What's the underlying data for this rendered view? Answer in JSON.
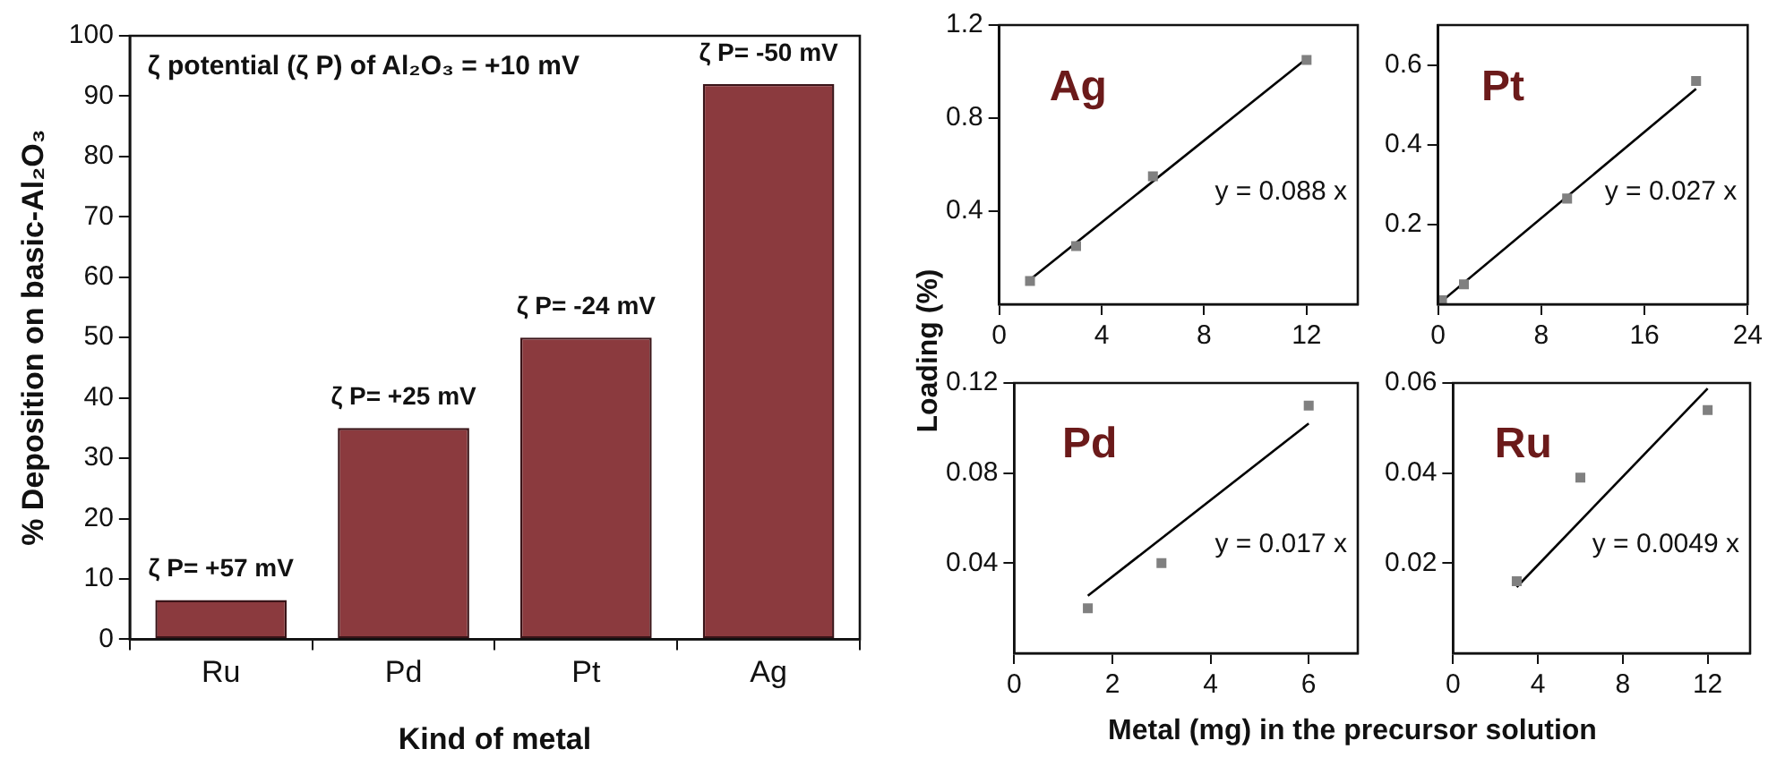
{
  "chart_data": [
    {
      "type": "bar",
      "xlabel": "Kind of metal",
      "ylabel": "% Deposition on basic-Al₂O₃",
      "categories": [
        "Ru",
        "Pd",
        "Pt",
        "Ag"
      ],
      "values": [
        6.5,
        35,
        50,
        92
      ],
      "color": "#8b3a3e",
      "ylim": [
        0,
        100
      ],
      "yticks": [
        0,
        10,
        20,
        30,
        40,
        50,
        60,
        70,
        80,
        90,
        100
      ],
      "grid": false,
      "annotations": [
        "ζ potential (ζ P) of Al₂O₃ = +10 mV",
        {
          "text": "ζ P= +57 mV",
          "x": "Ru",
          "y": 6.5
        },
        {
          "text": "ζ P= +25 mV",
          "x": "Pd",
          "y": 35
        },
        {
          "text": "ζ P= -24 mV",
          "x": "Pt",
          "y": 50
        },
        {
          "text": "ζ P= -50 mV",
          "x": "Ag",
          "y": 92
        }
      ]
    },
    {
      "type": "scatter",
      "ylabel": "Loading (%)",
      "xlim": [
        0,
        14
      ],
      "xticks": [
        0,
        4,
        8,
        12
      ],
      "ylim": [
        0,
        1.2
      ],
      "yticks": [
        0.4,
        0.8,
        1.2
      ],
      "grid": false,
      "marker": "square",
      "annotations": [
        "Ag",
        "y = 0.088 x"
      ],
      "series": [
        {
          "type": "scatter",
          "color": "#808080",
          "x": [
            1.2,
            3,
            6,
            12
          ],
          "values": [
            0.1,
            0.25,
            0.55,
            1.05
          ]
        },
        {
          "type": "line",
          "color": "#000000",
          "marker": "none",
          "x": [
            1.2,
            12
          ],
          "values": [
            0.106,
            1.056
          ]
        }
      ]
    },
    {
      "type": "scatter",
      "xlim": [
        0,
        24
      ],
      "xticks": [
        0,
        8,
        16,
        24
      ],
      "ylim": [
        0,
        0.7
      ],
      "yticks": [
        0.2,
        0.4,
        0.6
      ],
      "grid": false,
      "marker": "square",
      "annotations": [
        "Pt",
        "y = 0.027 x"
      ],
      "series": [
        {
          "type": "scatter",
          "color": "#808080",
          "x": [
            0.3,
            2,
            10,
            20
          ],
          "values": [
            0.01,
            0.05,
            0.265,
            0.56
          ]
        },
        {
          "type": "line",
          "color": "#000000",
          "marker": "none",
          "x": [
            0,
            20
          ],
          "values": [
            0,
            0.54
          ]
        }
      ]
    },
    {
      "type": "scatter",
      "xlabel": "Metal (mg) in the precursor solution",
      "xlim": [
        0,
        7
      ],
      "xticks": [
        0,
        2,
        4,
        6
      ],
      "ylim": [
        0,
        0.12
      ],
      "yticks": [
        0.04,
        0.08,
        0.12
      ],
      "grid": false,
      "marker": "square",
      "annotations": [
        "Pd",
        "y = 0.017 x"
      ],
      "series": [
        {
          "type": "scatter",
          "color": "#808080",
          "x": [
            1.5,
            3,
            6
          ],
          "values": [
            0.02,
            0.04,
            0.11
          ]
        },
        {
          "type": "line",
          "color": "#000000",
          "marker": "none",
          "x": [
            1.5,
            6
          ],
          "values": [
            0.0255,
            0.102
          ]
        }
      ]
    },
    {
      "type": "scatter",
      "xlim": [
        0,
        14
      ],
      "xticks": [
        0,
        4,
        8,
        12
      ],
      "ylim": [
        0,
        0.06
      ],
      "yticks": [
        0.02,
        0.04,
        0.06
      ],
      "grid": false,
      "marker": "square",
      "annotations": [
        "Ru",
        "y = 0.0049 x"
      ],
      "series": [
        {
          "type": "scatter",
          "color": "#808080",
          "x": [
            3,
            6,
            12
          ],
          "values": [
            0.016,
            0.039,
            0.054
          ]
        },
        {
          "type": "line",
          "color": "#000000",
          "marker": "none",
          "x": [
            3,
            12
          ],
          "values": [
            0.0147,
            0.0588
          ]
        }
      ]
    }
  ]
}
